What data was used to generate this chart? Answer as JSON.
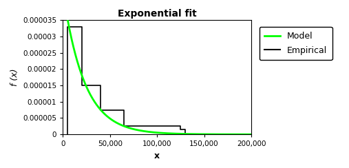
{
  "title": "Exponential fit",
  "xlabel": "x",
  "ylabel": "f (x)",
  "xlim": [
    0,
    200000
  ],
  "ylim": [
    0,
    3.5e-05
  ],
  "yticks": [
    0,
    5e-06,
    1e-05,
    1.5e-05,
    2e-05,
    2.5e-05,
    3e-05,
    3.5e-05
  ],
  "ytick_labels": [
    "0",
    "0.000005",
    "0.00001",
    "0.000015",
    "0.00002",
    "0.000025",
    "0.00003",
    "0.000035"
  ],
  "xticks": [
    0,
    50000,
    100000,
    150000,
    200000
  ],
  "xtick_labels": [
    "0",
    "50,000",
    "100,000",
    "150,000",
    "200,000"
  ],
  "model_color": "#00ff00",
  "empirical_color": "#000000",
  "background_color": "#ffffff",
  "exp_lambda": 4.4e-05,
  "hist_edges": [
    5000,
    10000,
    20000,
    40000,
    65000,
    125000,
    130000,
    200000
  ],
  "hist_heights": [
    3.3e-05,
    3.3e-05,
    1.5e-05,
    7.5e-06,
    2.5e-06,
    1.5e-06,
    0.0
  ],
  "title_fontsize": 10,
  "axis_label_fontsize": 9,
  "tick_fontsize": 7.5
}
